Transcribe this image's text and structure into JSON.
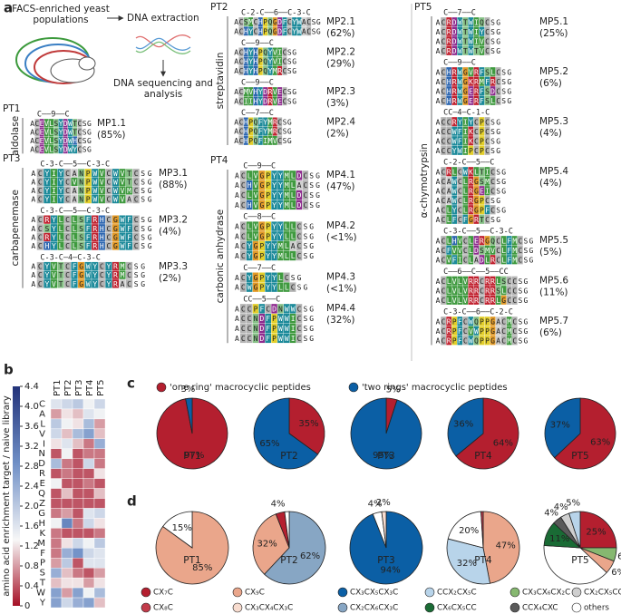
{
  "panel_a": {
    "label": "a",
    "workflow": {
      "start": "FACS-enriched yeast populations",
      "step1": "DNA extraction",
      "step2": "DNA sequencing and analysis"
    },
    "groups": [
      {
        "name": "PT1",
        "target": "aldolase",
        "motifs": [
          {
            "pattern": "C——9——C",
            "id": "MP1.1",
            "frequency": "(85%)",
            "sequences": [
              "ACEVLSYDWTCSG",
              "ACEVLSYDWTCSG",
              "ACEVLSYDWHCSG",
              "ACEVLSYDWYCSG"
            ]
          }
        ]
      },
      {
        "name": "PT2",
        "target": "streptavidin",
        "motifs": [
          {
            "pattern": "C-2-C——6——C-3-C",
            "id": "MP2.1",
            "frequency": "(62%)",
            "sequences": [
              "ACSMCHPQGDFCYWACSG",
              "ACHYCHPQGDFCYWACSG"
            ]
          },
          {
            "pattern": "C——9——C",
            "id": "MP2.2",
            "frequency": "(29%)",
            "sequences": [
              "ACHYHPQYVICSG",
              "ACHYHPQYVICSG",
              "ACHYHPQYMRCSG"
            ]
          },
          {
            "pattern": "C——9——C",
            "id": "MP2.3",
            "frequency": "(3%)",
            "sequences": [
              "ACMVHYDRVECSG",
              "ACIIHYDRVECSG"
            ]
          },
          {
            "pattern": "C——7——C",
            "id": "MP2.4",
            "frequency": "(2%)",
            "sequences": [
              "ACHPQFYMRCSG",
              "ACHPQFYMRCSG",
              "ACHPQFIMVCSG"
            ]
          }
        ]
      },
      {
        "name": "PT3",
        "target": "carbapenemase",
        "motifs": [
          {
            "pattern": "C-3-C——5——C-3-C",
            "id": "MP3.1",
            "frequency": "(88%)",
            "sequences": [
              "ACYIYCANPWVCWVTCSG",
              "ACYIYCVNPWVCWVTCSG",
              "ACYIYCANPWVCWVMCSG",
              "ACYIYCANPWVCWVACSG"
            ]
          },
          {
            "pattern": "C-3-C——5——C-3-C",
            "id": "MP3.2",
            "frequency": "(4%)",
            "sequences": [
              "ACRYLCLSFRHCGWFCSG",
              "ACSYLCLSFRHCGWFCSG",
              "ACRYLCLSFRHCGWFCSG",
              "ACHYLCLSFRHCGWFCSG"
            ]
          },
          {
            "pattern": "C-3-C—4—C-3-C",
            "id": "MP3.3",
            "frequency": "(2%)",
            "sequences": [
              "ACYVTCFGWYCYRMCSG",
              "ACYVTCFGWYCYRMCSG",
              "ACYVTCFGWYCYRACSG"
            ]
          }
        ]
      },
      {
        "name": "PT4",
        "target": "carbonic anhydrase",
        "motifs": [
          {
            "pattern": "C——9——C",
            "id": "MP4.1",
            "frequency": "(47%)",
            "sequences": [
              "ACLVGPYYMLDCSG",
              "ACHVGPYYMLACSG",
              "ACLVGPYYMLDCSG",
              "ACHVGPYYMLDCSG"
            ]
          },
          {
            "pattern": "C——8——C",
            "id": "MP4.2",
            "frequency": "(<1%)",
            "sequences": [
              "ACLVGPYYLLCSG",
              "ACLVGPYYLLCSG",
              "ACYGPYYMLACSG",
              "ACYGPYYMLLCSG"
            ]
          },
          {
            "pattern": "C——7——C",
            "id": "MP4.3",
            "frequency": "(<1%)",
            "sequences": [
              "ACYGPYYLCSG",
              "ACWGPYYLLCSG"
            ]
          },
          {
            "pattern": "CC——5——C",
            "id": "MP4.4",
            "frequency": "(32%)",
            "sequences": [
              "ACCPFCDNWWCSG",
              "ACCNDFPWWICSG",
              "ACCNDFPWWICSG",
              "ACCNDFPWWICSG"
            ]
          }
        ]
      },
      {
        "name": "PT5",
        "target": "α-chymotrypsin",
        "motifs": [
          {
            "pattern": "C——7——C",
            "id": "MP5.1",
            "frequency": "(25%)",
            "sequences": [
              "ACRDWTWIQCSG",
              "ACRDWTWIYCSG",
              "ACRDWTWIVCSG",
              "ACRDWTWTVCSG"
            ]
          },
          {
            "pattern": "C——9——C",
            "id": "MP5.2",
            "frequency": "(6%)",
            "sequences": [
              "ACHRWGVRFSLCSG",
              "ACHRWGKRMFRCSG",
              "ACHRWGERFSDCSG",
              "ACHRWGERFSLCSG"
            ]
          },
          {
            "pattern": "CC—4—C-1-C",
            "id": "MP5.3",
            "frequency": "(4%)",
            "sequences": [
              "ACCRYIYCPCSG",
              "ACCWFIKCPCSG",
              "ACCWFIKCPCSG",
              "ACCYWIPCPCSG"
            ]
          },
          {
            "pattern": "C-2-C——5——C",
            "id": "MP5.4",
            "frequency": "(4%)",
            "sequences": [
              "ACRLCWKLTICSG",
              "ACAWCLRGSMCSG",
              "ACAWCLRGEICSG",
              "ACAWCLRGPCSG",
              "ACLYCLRGPFCSG",
              "ACLFCFGRTCSG"
            ]
          },
          {
            "pattern": "C-3-C——5——C-3-C",
            "id": "MP5.5",
            "frequency": "(5%)",
            "sequences": [
              "ACLHVCLERGQCLFMCSG",
              "ACFVVCLDSMVCLFMCSG",
              "ACVFICLADLRCLFMCSG"
            ]
          },
          {
            "pattern": "C——6——C——5——CC",
            "id": "MP5.6",
            "frequency": "(11%)",
            "sequences": [
              "ACLVLVRRCRRLSCCSG",
              "ACLVLVRRCRRSLCCSG",
              "ACLVLVRRCRRLGCCSG"
            ]
          },
          {
            "pattern": "C-3-C——6——C-2-C",
            "id": "MP5.7",
            "frequency": "(6%)",
            "sequences": [
              "ACRPFCWQPPGACMCSG",
              "ACRPFCVWPPGACMCSG",
              "ACRPFCWQPPGACMCSG"
            ]
          }
        ]
      }
    ]
  },
  "panel_b": {
    "label": "b",
    "axis_label": "amino acid enrichment target / naive library",
    "columns": [
      "PT1",
      "PT2",
      "PT3",
      "PT4",
      "PT5"
    ],
    "rows": [
      "C",
      "A",
      "L",
      "V",
      "I",
      "N",
      "D",
      "R",
      "E",
      "Q",
      "Z",
      "G",
      "H",
      "K",
      "M",
      "F",
      "P",
      "S",
      "T",
      "W",
      "Y"
    ],
    "values": [
      [
        1.6,
        1.8,
        2.0,
        1.4,
        1.8
      ],
      [
        0.8,
        1.2,
        1.0,
        1.6,
        1.4
      ],
      [
        2.0,
        1.4,
        1.2,
        2.2,
        0.8
      ],
      [
        1.8,
        1.0,
        2.2,
        2.6,
        1.0
      ],
      [
        1.2,
        1.6,
        1.0,
        0.6,
        2.4
      ],
      [
        0.4,
        1.4,
        0.4,
        0.6,
        0.6
      ],
      [
        2.2,
        0.6,
        0.4,
        1.8,
        0.6
      ],
      [
        0.4,
        0.6,
        0.4,
        0.4,
        1.2
      ],
      [
        1.4,
        0.4,
        0.4,
        0.6,
        0.4
      ],
      [
        0.4,
        1.0,
        0.4,
        0.4,
        1.0
      ],
      [
        0.4,
        0.4,
        0.4,
        0.4,
        0.4
      ],
      [
        0.6,
        0.8,
        0.4,
        1.6,
        1.8
      ],
      [
        1.4,
        3.0,
        0.6,
        1.8,
        1.2
      ],
      [
        0.6,
        0.4,
        0.4,
        0.4,
        0.6
      ],
      [
        0.6,
        1.2,
        1.8,
        1.4,
        2.0
      ],
      [
        0.6,
        2.4,
        2.8,
        1.8,
        1.6
      ],
      [
        0.8,
        2.0,
        0.4,
        1.6,
        1.6
      ],
      [
        2.4,
        1.0,
        0.6,
        0.4,
        0.8
      ],
      [
        1.0,
        1.2,
        1.2,
        0.8,
        1.2
      ],
      [
        2.6,
        0.8,
        2.6,
        1.4,
        2.2
      ],
      [
        2.6,
        1.8,
        2.4,
        2.6,
        1.0
      ]
    ],
    "colorbar_lim": [
      0,
      4.4
    ],
    "colorbar_ticks": [
      0,
      0.4,
      0.8,
      1.2,
      1.6,
      {
        "value": 2,
        "label": "2.0"
      },
      2.4,
      2.8,
      3.2,
      3.6,
      {
        "value": 4,
        "label": "4.0"
      },
      4.4
    ]
  },
  "panel_c": {
    "label": "c",
    "legend": [
      {
        "name": "'one ring' macrocyclic peptides",
        "color": "#b41f2f"
      },
      {
        "name": "'two rings' macrocyclic peptides",
        "color": "#0b5fa5"
      }
    ],
    "pies": [
      {
        "name": "PT1",
        "values": [
          97,
          3
        ],
        "value_labels": [
          "97%",
          "3%"
        ]
      },
      {
        "name": "PT2",
        "values": [
          35,
          65
        ],
        "value_labels": [
          "35%",
          "65%"
        ]
      },
      {
        "name": "PT3",
        "values": [
          5,
          95
        ],
        "value_labels": [
          "5%",
          "95%"
        ]
      },
      {
        "name": "PT4",
        "values": [
          64,
          36
        ],
        "value_labels": [
          "64%",
          "36%"
        ]
      },
      {
        "name": "PT5",
        "values": [
          63,
          37
        ],
        "value_labels": [
          "63%",
          "37%"
        ]
      }
    ]
  },
  "panel_d": {
    "label": "d",
    "legend": [
      {
        "name": "CX₇C",
        "color": "#b41f2f"
      },
      {
        "name": "CX₉C",
        "color": "#eaa68b"
      },
      {
        "name": "CX₃CX₅CX₃C",
        "color": "#0b5fa5"
      },
      {
        "name": "CCX₂CX₅C",
        "color": "#b8d4ea"
      },
      {
        "name": "CX₃CX₆CX₂C",
        "color": "#86b870"
      },
      {
        "name": "CX₂CX₅CC",
        "color": "#cfcfcf"
      },
      {
        "name": "CX₈C",
        "color": "#c23b4a"
      },
      {
        "name": "CX₃CX₄CX₃C",
        "color": "#f8dccf"
      },
      {
        "name": "CX₂CX₆CX₃C",
        "color": "#87a6c4"
      },
      {
        "name": "CX₆CX₅CC",
        "color": "#1a6b35"
      },
      {
        "name": "CCX₄CXC",
        "color": "#5a5a5a"
      },
      {
        "name": "others",
        "color": "#ffffff"
      }
    ],
    "pies": [
      {
        "name": "PT1",
        "classes": [
          "CX₉C",
          "others"
        ],
        "values": [
          85,
          15
        ],
        "value_labels": [
          "85%",
          "15%"
        ]
      },
      {
        "name": "PT2",
        "classes": [
          "CX₂CX₆CX₃C",
          "CX₉C",
          "CX₇C",
          "others"
        ],
        "values": [
          62,
          32,
          4,
          2
        ],
        "value_labels": [
          "62%",
          "32%",
          "4%",
          null
        ]
      },
      {
        "name": "PT3",
        "classes": [
          "CX₃CX₅CX₃C",
          "others",
          "CX₃CX₄CX₃C"
        ],
        "values": [
          94,
          4,
          2
        ],
        "value_labels": [
          "94%",
          "4%",
          "2%"
        ]
      },
      {
        "name": "PT4",
        "classes": [
          "CX₉C",
          "CCX₂CX₅C",
          "others",
          "CX₈C"
        ],
        "values": [
          47,
          32,
          20,
          1
        ],
        "value_labels": [
          "47%",
          "32%",
          "20%",
          null
        ]
      },
      {
        "name": "PT5",
        "classes": [
          "CX₇C",
          "CX₃CX₆CX₂C",
          "CX₉C",
          "others",
          "CX₆CX₅CC",
          "CCX₄CXC",
          "CX₂CX₅CC",
          "CCX₂CX₅C"
        ],
        "values": [
          25,
          6,
          6,
          39,
          11,
          4,
          4,
          5
        ],
        "value_labels": [
          "25%",
          "6%",
          "6%",
          null,
          "11%",
          "4%",
          "4%",
          "5%"
        ]
      }
    ]
  }
}
